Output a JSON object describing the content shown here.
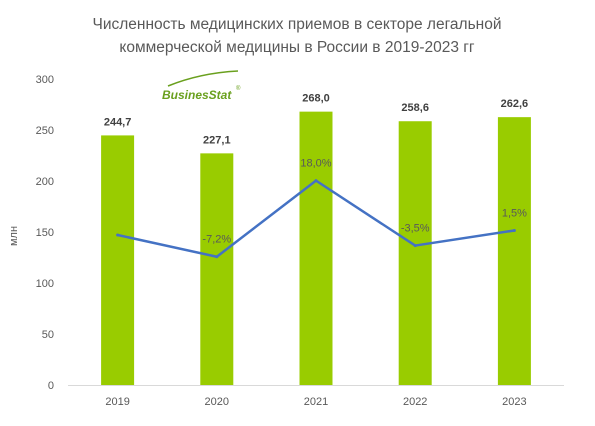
{
  "logo": {
    "text": "BusinesStat",
    "mark": "®",
    "color": "#6aa01e"
  },
  "chart_data": {
    "type": "bar",
    "title": "Численность медицинских приемов в секторе легальной коммерческой медицины в России в 2019-2023 гг",
    "title_lines": [
      "Численность медицинских приемов в секторе легальной",
      "коммерческой медицины в России в 2019-2023 гг"
    ],
    "categories": [
      "2019",
      "2020",
      "2021",
      "2022",
      "2023"
    ],
    "series": [
      {
        "type": "bar",
        "values": [
          244.7,
          227.1,
          268.0,
          258.6,
          262.6
        ],
        "labels": [
          "244,7",
          "227,1",
          "268,0",
          "258,6",
          "262,6"
        ],
        "color": "#99cc00"
      },
      {
        "type": "line",
        "values": [
          null,
          -7.2,
          18.0,
          -3.5,
          1.5
        ],
        "labels": [
          "",
          "-7,2%",
          "18,0%",
          "-3,5%",
          "1,5%"
        ],
        "color": "#4472c4"
      }
    ],
    "xlabel": "",
    "ylabel": "млн",
    "ylim": [
      0,
      300
    ],
    "yticks": [
      0,
      50,
      100,
      150,
      200,
      250,
      300
    ],
    "grid": false,
    "legend": "none"
  }
}
